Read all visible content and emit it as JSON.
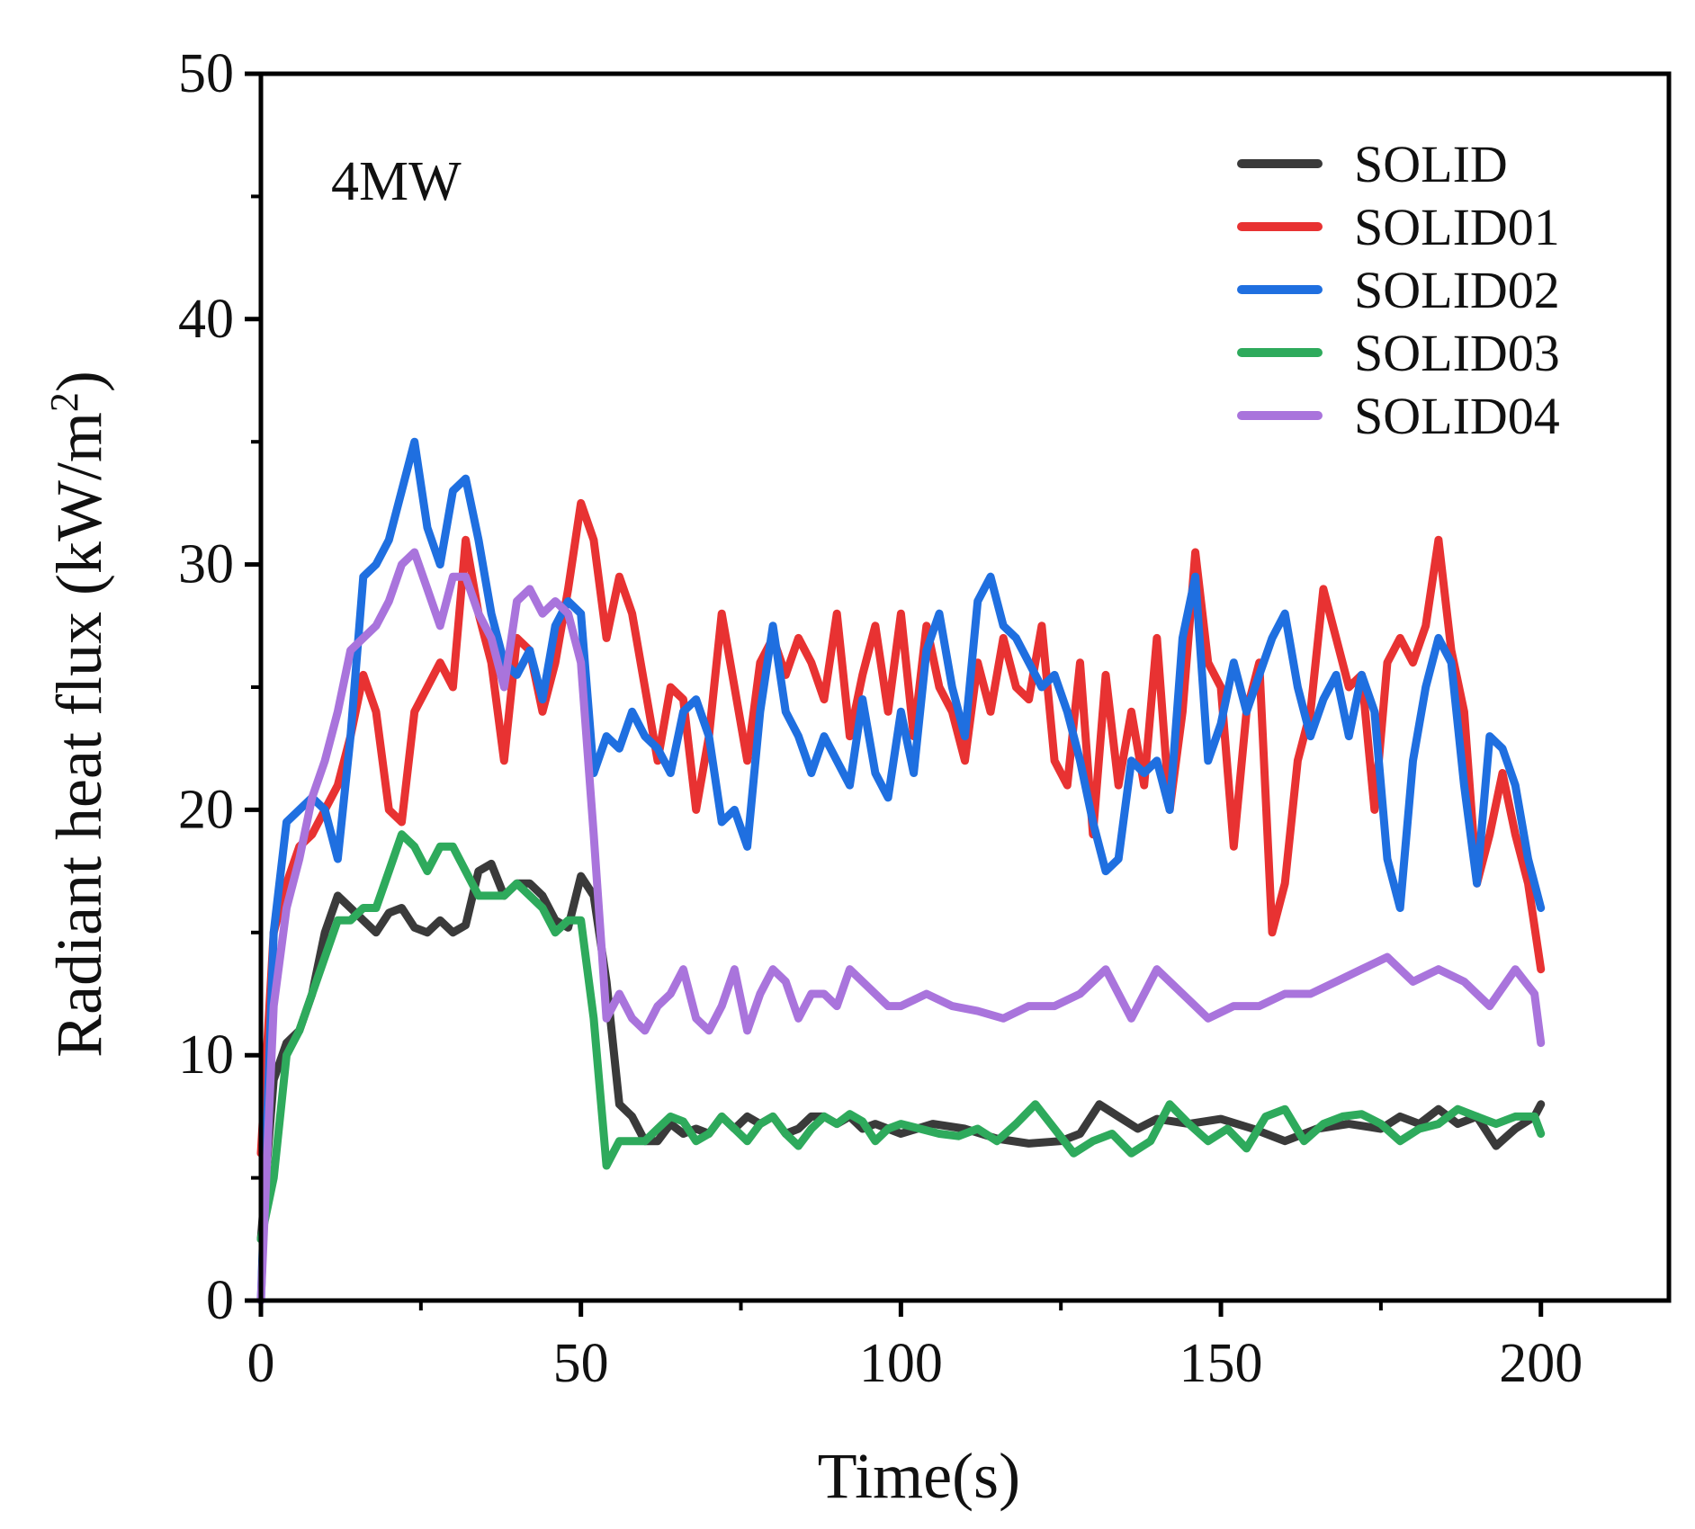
{
  "chart_data": {
    "type": "line",
    "title": "",
    "annotation": "4MW",
    "xlabel": "Time(s)",
    "ylabel_main": "Radiant heat flux (kW/m",
    "ylabel_sup": "2",
    "ylabel_close": ")",
    "xlim": [
      0,
      220
    ],
    "ylim": [
      0,
      50
    ],
    "xticks": [
      0,
      50,
      100,
      150,
      200
    ],
    "yticks": [
      0,
      10,
      20,
      30,
      40,
      50
    ],
    "xtick_labels": [
      "0",
      "50",
      "100",
      "150",
      "200"
    ],
    "ytick_labels": [
      "0",
      "10",
      "20",
      "30",
      "40",
      "50"
    ],
    "legend_position": "top-right",
    "series": [
      {
        "name": "SOLID",
        "color": "#3a3a3a",
        "x": [
          0,
          2,
          4,
          6,
          8,
          10,
          12,
          14,
          16,
          18,
          20,
          22,
          24,
          26,
          28,
          30,
          32,
          34,
          36,
          38,
          40,
          42,
          44,
          46,
          48,
          50,
          52,
          54,
          56,
          58,
          60,
          62,
          64,
          66,
          68,
          70,
          72,
          74,
          76,
          78,
          80,
          82,
          84,
          86,
          88,
          90,
          92,
          94,
          96,
          98,
          100,
          105,
          110,
          115,
          120,
          125,
          128,
          131,
          134,
          137,
          140,
          145,
          150,
          155,
          160,
          165,
          170,
          175,
          178,
          181,
          184,
          187,
          190,
          193,
          196,
          199,
          200
        ],
        "values": [
          2.5,
          9,
          10.5,
          11,
          12.5,
          15,
          16.5,
          16,
          15.5,
          15,
          15.8,
          16,
          15.2,
          15,
          15.5,
          15,
          15.3,
          17.5,
          17.8,
          16.5,
          17,
          17,
          16.5,
          15.5,
          15.2,
          17.3,
          16.5,
          13,
          8,
          7.5,
          6.5,
          6.5,
          7.2,
          6.8,
          7,
          6.8,
          7.5,
          7,
          7.5,
          7.2,
          7.5,
          6.8,
          7,
          7.5,
          7.5,
          7.2,
          7.5,
          7,
          7.2,
          7,
          6.8,
          7.2,
          7,
          6.6,
          6.4,
          6.5,
          6.8,
          8,
          7.5,
          7,
          7.4,
          7.2,
          7.4,
          7,
          6.5,
          7,
          7.2,
          7,
          7.5,
          7.2,
          7.8,
          7.2,
          7.5,
          6.3,
          7,
          7.5,
          8
        ]
      },
      {
        "name": "SOLID01",
        "color": "#e83232",
        "x": [
          0,
          2,
          4,
          6,
          8,
          10,
          12,
          14,
          16,
          18,
          20,
          22,
          24,
          26,
          28,
          30,
          32,
          34,
          36,
          38,
          40,
          42,
          44,
          46,
          48,
          50,
          52,
          54,
          56,
          58,
          60,
          62,
          64,
          66,
          68,
          70,
          72,
          74,
          76,
          78,
          80,
          82,
          84,
          86,
          88,
          90,
          92,
          94,
          96,
          98,
          100,
          102,
          104,
          106,
          108,
          110,
          112,
          114,
          116,
          118,
          120,
          122,
          124,
          126,
          128,
          130,
          132,
          134,
          136,
          138,
          140,
          142,
          144,
          146,
          148,
          150,
          152,
          154,
          156,
          158,
          160,
          162,
          164,
          166,
          168,
          170,
          172,
          174,
          176,
          178,
          180,
          182,
          184,
          186,
          188,
          190,
          192,
          194,
          196,
          198,
          200
        ],
        "values": [
          6,
          15,
          17,
          18.5,
          19,
          20,
          21,
          23,
          25.5,
          24,
          20,
          19.5,
          24,
          25,
          26,
          25,
          31,
          28,
          26,
          22,
          27,
          26.5,
          24,
          26,
          29,
          32.5,
          31,
          27,
          29.5,
          28,
          25,
          22,
          25,
          24.5,
          20,
          23,
          28,
          25,
          22,
          26,
          27,
          25.5,
          27,
          26,
          24.5,
          28,
          23,
          25.5,
          27.5,
          24,
          28,
          23,
          27.5,
          25,
          24,
          22,
          26,
          24,
          27,
          25,
          24.5,
          27.5,
          22,
          21,
          26,
          19,
          25.5,
          21,
          24,
          21,
          27,
          20,
          24,
          30.5,
          26,
          25,
          18.5,
          24,
          26,
          15,
          17,
          22,
          24,
          29,
          27,
          25,
          25.5,
          20,
          26,
          27,
          26,
          27.5,
          31,
          26.5,
          24,
          17,
          19,
          21.5,
          19,
          17,
          13.5
        ]
      },
      {
        "name": "SOLID02",
        "color": "#1f6fe0",
        "x": [
          0,
          2,
          4,
          6,
          8,
          10,
          12,
          14,
          16,
          18,
          20,
          22,
          24,
          26,
          28,
          30,
          32,
          34,
          36,
          38,
          40,
          42,
          44,
          46,
          48,
          50,
          52,
          54,
          56,
          58,
          60,
          62,
          64,
          66,
          68,
          70,
          72,
          74,
          76,
          78,
          80,
          82,
          84,
          86,
          88,
          90,
          92,
          94,
          96,
          98,
          100,
          102,
          104,
          106,
          108,
          110,
          112,
          114,
          116,
          118,
          120,
          122,
          124,
          126,
          128,
          130,
          132,
          134,
          136,
          138,
          140,
          142,
          144,
          146,
          148,
          150,
          152,
          154,
          156,
          158,
          160,
          162,
          164,
          166,
          168,
          170,
          172,
          174,
          176,
          178,
          180,
          182,
          184,
          186,
          188,
          190,
          192,
          194,
          196,
          198,
          200
        ],
        "values": [
          0,
          15,
          19.5,
          20,
          20.5,
          20,
          18,
          23,
          29.5,
          30,
          31,
          33,
          35,
          31.5,
          30,
          33,
          33.5,
          31,
          28,
          26,
          25.5,
          26.5,
          24.5,
          27.5,
          28.5,
          28,
          21.5,
          23,
          22.5,
          24,
          23,
          22.5,
          21.5,
          24,
          24.5,
          23,
          19.5,
          20,
          18.5,
          24,
          27.5,
          24,
          23,
          21.5,
          23,
          22,
          21,
          24.5,
          21.5,
          20.5,
          24,
          21.5,
          26.5,
          28,
          25,
          23,
          28.5,
          29.5,
          27.5,
          27,
          26,
          25,
          25.5,
          24,
          22,
          19.5,
          17.5,
          18,
          22,
          21.5,
          22,
          20,
          27,
          29.5,
          22,
          23.5,
          26,
          24,
          25.5,
          27,
          28,
          25,
          23,
          24.5,
          25.5,
          23,
          25.5,
          24,
          18,
          16,
          22,
          25,
          27,
          26,
          21,
          17,
          23,
          22.5,
          21,
          18,
          16
        ]
      },
      {
        "name": "SOLID03",
        "color": "#2eaa5c",
        "x": [
          0,
          2,
          4,
          6,
          8,
          10,
          12,
          14,
          16,
          18,
          20,
          22,
          24,
          26,
          28,
          30,
          32,
          34,
          36,
          38,
          40,
          42,
          44,
          46,
          48,
          50,
          52,
          54,
          56,
          58,
          60,
          62,
          64,
          66,
          68,
          70,
          72,
          74,
          76,
          78,
          80,
          82,
          84,
          86,
          88,
          90,
          92,
          94,
          96,
          98,
          100,
          103,
          106,
          109,
          112,
          115,
          118,
          121,
          124,
          127,
          130,
          133,
          136,
          139,
          142,
          145,
          148,
          151,
          154,
          157,
          160,
          163,
          166,
          169,
          172,
          175,
          178,
          181,
          184,
          187,
          190,
          193,
          196,
          199,
          200
        ],
        "values": [
          2.5,
          5,
          10,
          11,
          12.5,
          14,
          15.5,
          15.5,
          16,
          16,
          17.5,
          19,
          18.5,
          17.5,
          18.5,
          18.5,
          17.5,
          16.5,
          16.5,
          16.5,
          17,
          16.5,
          16,
          15,
          15.5,
          15.5,
          11.5,
          5.5,
          6.5,
          6.5,
          6.5,
          7,
          7.5,
          7.3,
          6.5,
          6.8,
          7.5,
          7,
          6.5,
          7.2,
          7.5,
          6.8,
          6.3,
          7,
          7.5,
          7.2,
          7.6,
          7.3,
          6.5,
          7,
          7.2,
          7,
          6.8,
          6.7,
          7,
          6.5,
          7.2,
          8,
          7,
          6,
          6.5,
          6.8,
          6,
          6.5,
          8,
          7.2,
          6.5,
          7,
          6.2,
          7.5,
          7.8,
          6.5,
          7.2,
          7.5,
          7.6,
          7.2,
          6.5,
          7,
          7.2,
          7.8,
          7.5,
          7.2,
          7.5,
          7.5,
          6.8
        ]
      },
      {
        "name": "SOLID04",
        "color": "#a974dc",
        "x": [
          0,
          2,
          4,
          6,
          8,
          10,
          12,
          14,
          16,
          18,
          20,
          22,
          24,
          26,
          28,
          30,
          32,
          34,
          36,
          38,
          40,
          42,
          44,
          46,
          48,
          50,
          52,
          54,
          56,
          58,
          60,
          62,
          64,
          66,
          68,
          70,
          72,
          74,
          76,
          78,
          80,
          82,
          84,
          86,
          88,
          90,
          92,
          94,
          96,
          98,
          100,
          104,
          108,
          112,
          116,
          120,
          124,
          128,
          132,
          136,
          140,
          144,
          148,
          152,
          156,
          160,
          164,
          168,
          172,
          176,
          180,
          184,
          188,
          192,
          196,
          199,
          200
        ],
        "values": [
          0,
          12,
          16,
          18,
          20.5,
          22,
          24,
          26.5,
          27,
          27.5,
          28.5,
          30,
          30.5,
          29,
          27.5,
          29.5,
          29.5,
          28,
          27,
          25,
          28.5,
          29,
          28,
          28.5,
          28,
          26,
          19,
          11.5,
          12.5,
          11.5,
          11,
          12,
          12.5,
          13.5,
          11.5,
          11,
          12,
          13.5,
          11,
          12.5,
          13.5,
          13,
          11.5,
          12.5,
          12.5,
          12,
          13.5,
          13,
          12.5,
          12,
          12,
          12.5,
          12,
          11.8,
          11.5,
          12,
          12,
          12.5,
          13.5,
          11.5,
          13.5,
          12.5,
          11.5,
          12,
          12,
          12.5,
          12.5,
          13,
          13.5,
          14,
          13,
          13.5,
          13,
          12,
          13.5,
          12.5,
          10.5
        ]
      }
    ]
  }
}
